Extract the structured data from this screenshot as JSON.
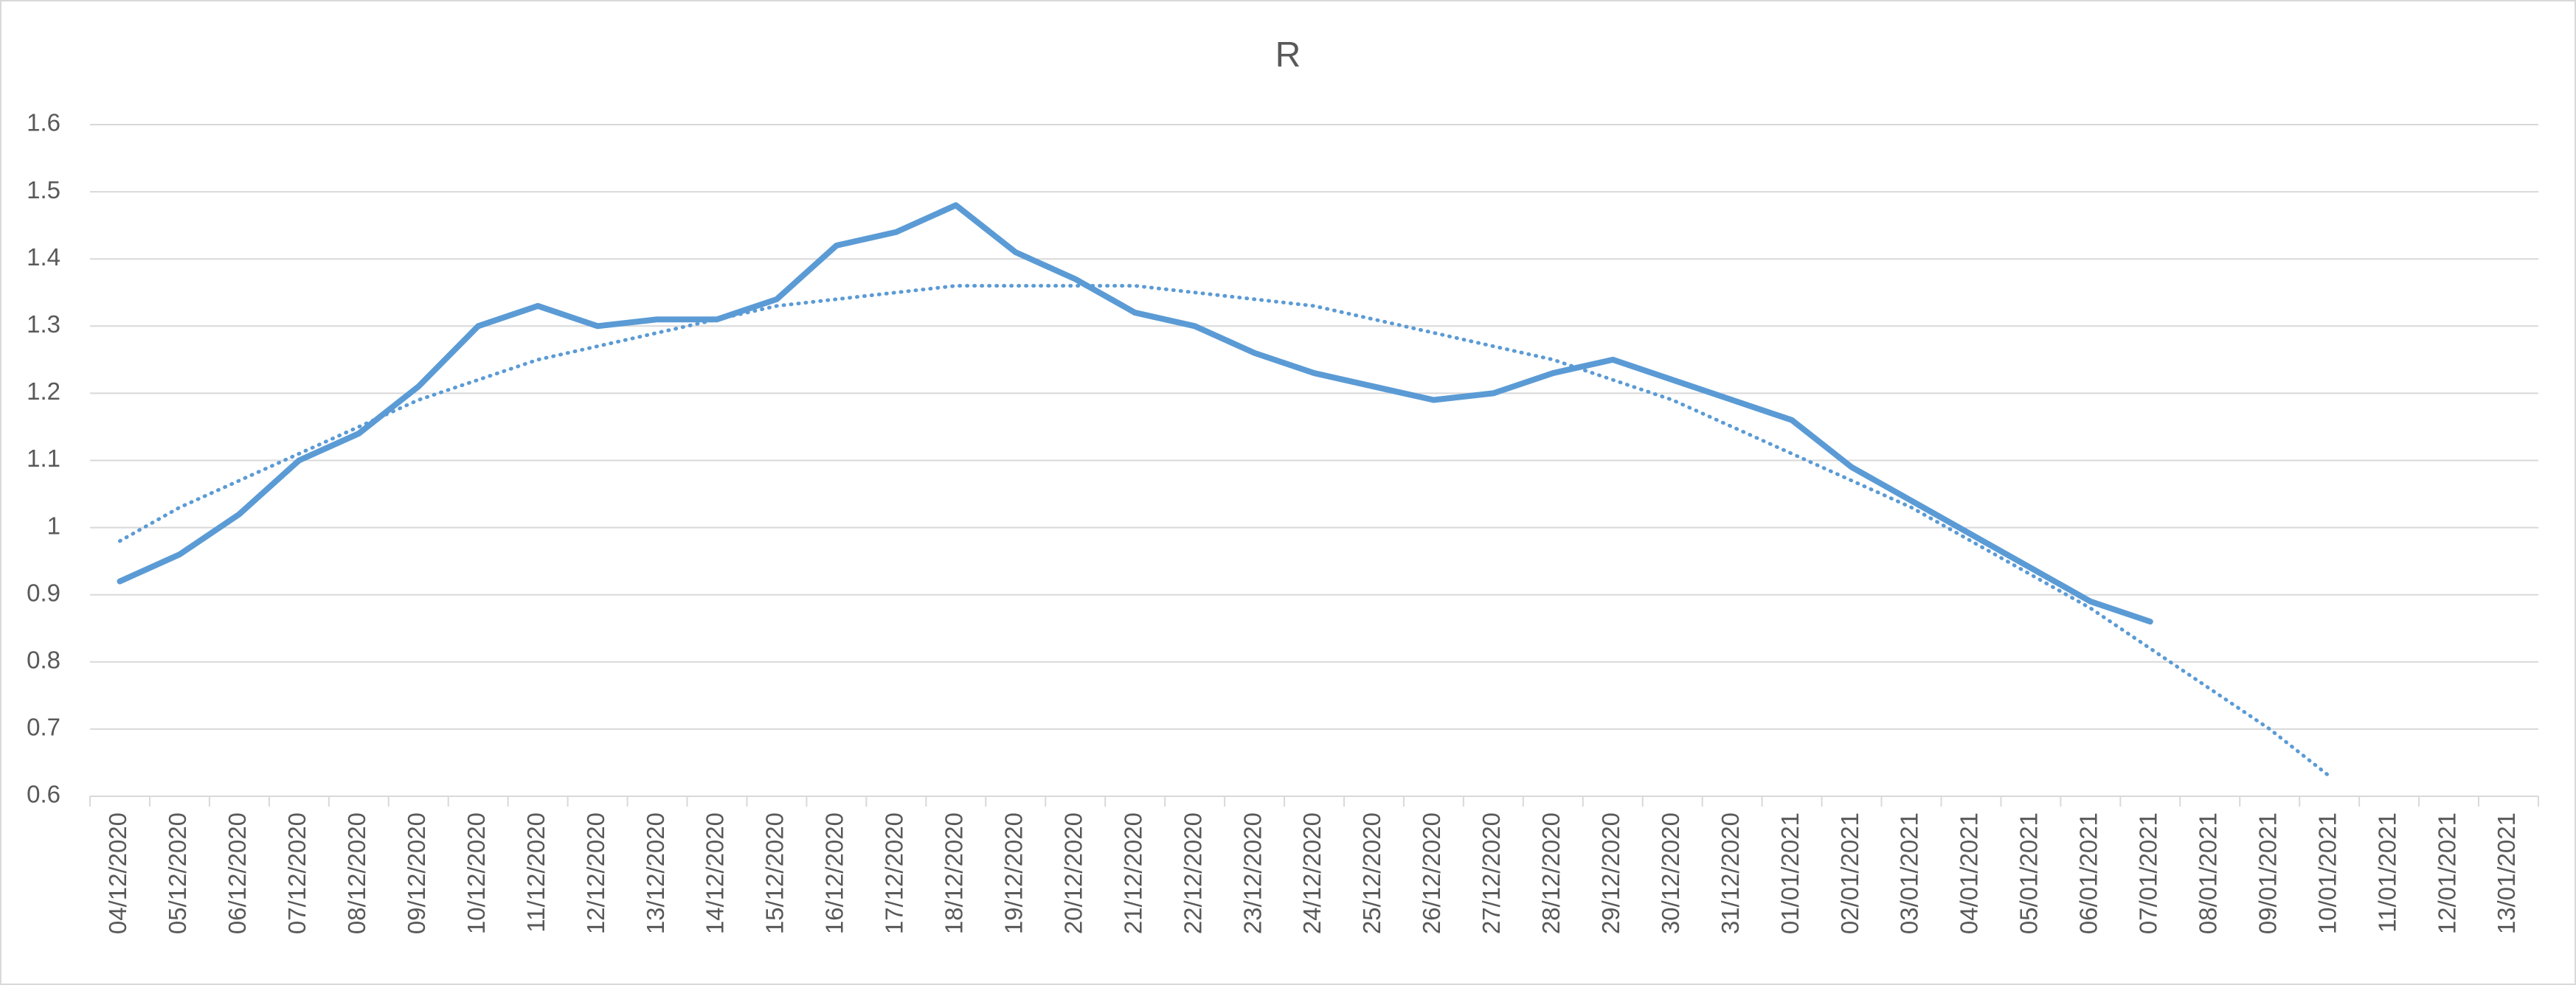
{
  "chart_data": {
    "type": "line",
    "title": "R",
    "categories": [
      "04/12/2020",
      "05/12/2020",
      "06/12/2020",
      "07/12/2020",
      "08/12/2020",
      "09/12/2020",
      "10/12/2020",
      "11/12/2020",
      "12/12/2020",
      "13/12/2020",
      "14/12/2020",
      "15/12/2020",
      "16/12/2020",
      "17/12/2020",
      "18/12/2020",
      "19/12/2020",
      "20/12/2020",
      "21/12/2020",
      "22/12/2020",
      "23/12/2020",
      "24/12/2020",
      "25/12/2020",
      "26/12/2020",
      "27/12/2020",
      "28/12/2020",
      "29/12/2020",
      "30/12/2020",
      "31/12/2020",
      "01/01/2021",
      "02/01/2021",
      "03/01/2021",
      "04/01/2021",
      "05/01/2021",
      "06/01/2021",
      "07/01/2021",
      "08/01/2021",
      "09/01/2021",
      "10/01/2021",
      "11/01/2021",
      "12/01/2021",
      "13/01/2021"
    ],
    "series": [
      {
        "color": "#5b9bd5",
        "style": "solid",
        "values": [
          0.92,
          0.96,
          1.02,
          1.1,
          1.14,
          1.21,
          1.3,
          1.33,
          1.3,
          1.31,
          1.31,
          1.34,
          1.42,
          1.44,
          1.48,
          1.41,
          1.37,
          1.32,
          1.3,
          1.26,
          1.23,
          1.21,
          1.19,
          1.2,
          1.23,
          1.25,
          1.22,
          1.19,
          1.16,
          1.09,
          1.04,
          0.99,
          0.94,
          0.89,
          0.86,
          null,
          null,
          null,
          null,
          null,
          null
        ]
      },
      {
        "color": "#5b9bd5",
        "style": "dotted",
        "values": [
          0.98,
          1.03,
          1.07,
          1.11,
          1.15,
          1.19,
          1.22,
          1.25,
          1.27,
          1.29,
          1.31,
          1.33,
          1.34,
          1.35,
          1.36,
          1.36,
          1.36,
          1.36,
          1.35,
          1.34,
          1.33,
          1.31,
          1.29,
          1.27,
          1.25,
          1.22,
          1.19,
          1.15,
          1.11,
          1.07,
          1.03,
          0.98,
          0.93,
          0.88,
          0.82,
          0.76,
          0.7,
          0.63,
          null,
          null,
          null
        ]
      }
    ],
    "ylim": [
      0.6,
      1.6
    ],
    "yticks": [
      0.6,
      0.7,
      0.8,
      0.9,
      1,
      1.1,
      1.2,
      1.3,
      1.4,
      1.5,
      1.6
    ],
    "grid": true
  }
}
